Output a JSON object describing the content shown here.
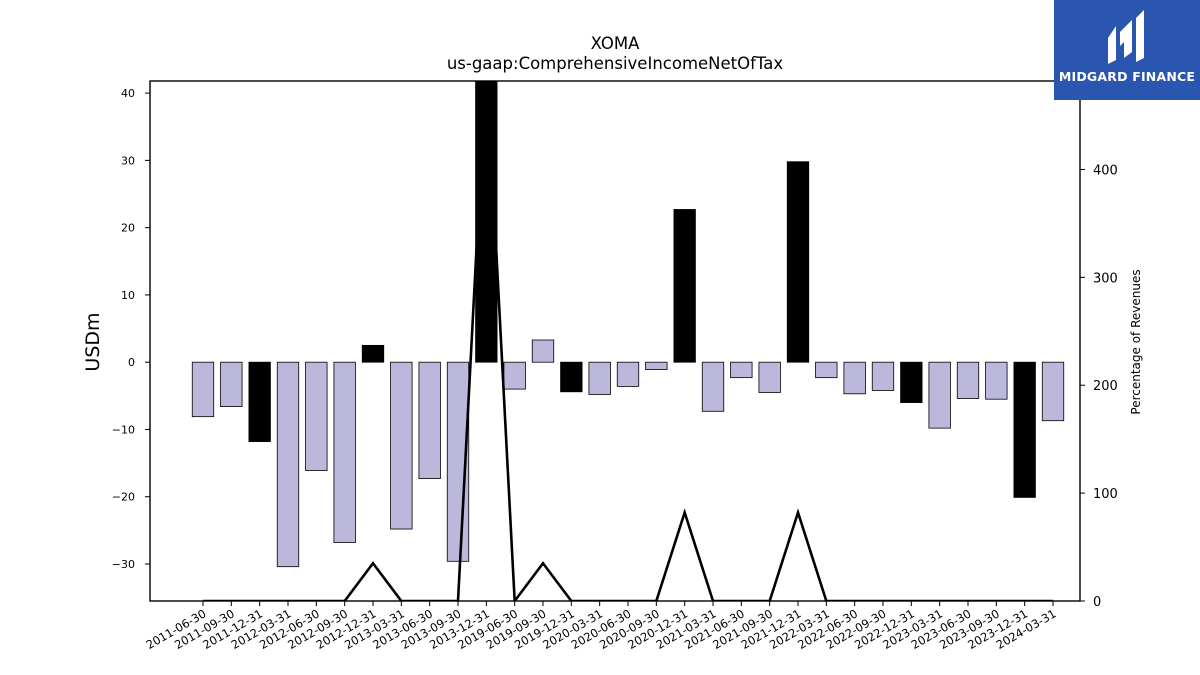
{
  "brand": {
    "name": "MIDGARD FINANCE",
    "icon": "midgard-logo-icon",
    "color": "#2a56b0"
  },
  "chart_data": {
    "type": "bar",
    "title": "XOMA",
    "subtitle": "us-gaap:ComprehensiveIncomeNetOfTax",
    "ylabel": "USDm",
    "y2label": "Percentage of Revenues",
    "ylim": [
      -35.5,
      41.8
    ],
    "y_ticks": [
      -30,
      -20,
      -10,
      0,
      10,
      20,
      30,
      40
    ],
    "y2lim": [
      0,
      482
    ],
    "y2_ticks": [
      0,
      100,
      200,
      300,
      400
    ],
    "grid": false,
    "colors": {
      "q4_bar": "#000000",
      "other_bar": "#bcb8dc",
      "line": "#000000"
    },
    "categories": [
      "2011-06-30",
      "2011-09-30",
      "2011-12-31",
      "2012-03-31",
      "2012-06-30",
      "2012-09-30",
      "2012-12-31",
      "2013-03-31",
      "2013-06-30",
      "2013-09-30",
      "2013-12-31",
      "2019-06-30",
      "2019-09-30",
      "2019-12-31",
      "2020-03-31",
      "2020-06-30",
      "2020-09-30",
      "2020-12-31",
      "2021-03-31",
      "2021-06-30",
      "2021-09-30",
      "2021-12-31",
      "2022-03-31",
      "2022-06-30",
      "2022-09-30",
      "2022-12-31",
      "2023-03-31",
      "2023-06-30",
      "2023-09-30",
      "2023-12-31",
      "2024-03-31"
    ],
    "series": [
      {
        "type": "bar",
        "values": [
          -8.1,
          -6.6,
          -11.8,
          -30.4,
          -16.1,
          -26.8,
          2.5,
          -24.8,
          -17.3,
          -29.6,
          42.0,
          -4.0,
          3.3,
          -4.4,
          -4.8,
          -3.6,
          -1.1,
          22.7,
          -7.3,
          -2.3,
          -4.5,
          29.8,
          -2.3,
          -4.7,
          -4.2,
          -6.0,
          -9.8,
          -5.4,
          -5.5,
          -20.1,
          -8.7
        ]
      },
      {
        "type": "line",
        "values": [
          0,
          0,
          0,
          0,
          0,
          0,
          35,
          0,
          0,
          0,
          500,
          0,
          35,
          0,
          0,
          0,
          0,
          82,
          0,
          0,
          0,
          82,
          0,
          0,
          0,
          0,
          0,
          0,
          0,
          0,
          0
        ]
      }
    ]
  }
}
